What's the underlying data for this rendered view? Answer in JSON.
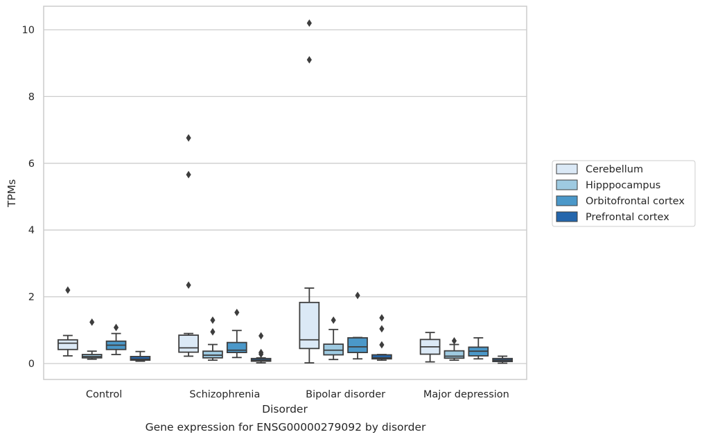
{
  "chart_data": {
    "type": "box",
    "title": "",
    "caption": "Gene expression for ENSG00000279092 by disorder",
    "xlabel": "Disorder",
    "ylabel": "TPMs",
    "ylim": [
      -0.47,
      10.7
    ],
    "yticks": [
      0,
      2,
      4,
      6,
      8,
      10
    ],
    "grid": "horizontal",
    "legend_position": "right",
    "categories": [
      "Control",
      "Schizophrenia",
      "Bipolar disorder",
      "Major depression"
    ],
    "series": [
      {
        "name": "Cerebellum",
        "color": "#dbe9f6",
        "boxes": [
          {
            "whisker_low": 0.23,
            "q1": 0.42,
            "median": 0.61,
            "q3": 0.71,
            "whisker_high": 0.84,
            "outliers": [
              2.2
            ]
          },
          {
            "whisker_low": 0.22,
            "q1": 0.34,
            "median": 0.47,
            "q3": 0.85,
            "whisker_high": 0.9,
            "outliers": [
              2.35,
              5.66,
              6.76
            ]
          },
          {
            "whisker_low": 0.02,
            "q1": 0.45,
            "median": 0.71,
            "q3": 1.83,
            "whisker_high": 2.26,
            "outliers": [
              9.1,
              10.2
            ]
          },
          {
            "whisker_low": 0.05,
            "q1": 0.28,
            "median": 0.5,
            "q3": 0.72,
            "whisker_high": 0.93,
            "outliers": []
          }
        ]
      },
      {
        "name": "Hipppocampus",
        "color": "#9ecae1",
        "boxes": [
          {
            "whisker_low": 0.13,
            "q1": 0.17,
            "median": 0.21,
            "q3": 0.27,
            "whisker_high": 0.37,
            "outliers": [
              1.24
            ]
          },
          {
            "whisker_low": 0.1,
            "q1": 0.17,
            "median": 0.25,
            "q3": 0.37,
            "whisker_high": 0.57,
            "outliers": [
              0.95,
              1.3
            ]
          },
          {
            "whisker_low": 0.12,
            "q1": 0.26,
            "median": 0.4,
            "q3": 0.58,
            "whisker_high": 1.02,
            "outliers": [
              1.3
            ]
          },
          {
            "whisker_low": 0.1,
            "q1": 0.16,
            "median": 0.22,
            "q3": 0.38,
            "whisker_high": 0.57,
            "outliers": [
              0.68
            ]
          }
        ]
      },
      {
        "name": "Orbitofrontal cortex",
        "color": "#4b98c9",
        "boxes": [
          {
            "whisker_low": 0.27,
            "q1": 0.42,
            "median": 0.55,
            "q3": 0.67,
            "whisker_high": 0.9,
            "outliers": [
              1.08
            ]
          },
          {
            "whisker_low": 0.18,
            "q1": 0.33,
            "median": 0.4,
            "q3": 0.63,
            "whisker_high": 0.99,
            "outliers": [
              1.53
            ]
          },
          {
            "whisker_low": 0.14,
            "q1": 0.33,
            "median": 0.5,
            "q3": 0.77,
            "whisker_high": 0.78,
            "outliers": [
              2.04
            ]
          },
          {
            "whisker_low": 0.14,
            "q1": 0.23,
            "median": 0.37,
            "q3": 0.49,
            "whisker_high": 0.77,
            "outliers": []
          }
        ]
      },
      {
        "name": "Prefrontal cortex",
        "color": "#2466ac",
        "boxes": [
          {
            "whisker_low": 0.07,
            "q1": 0.1,
            "median": 0.13,
            "q3": 0.21,
            "whisker_high": 0.36,
            "outliers": []
          },
          {
            "whisker_low": 0.02,
            "q1": 0.07,
            "median": 0.1,
            "q3": 0.15,
            "whisker_high": 0.17,
            "outliers": [
              0.28,
              0.33,
              0.83
            ]
          },
          {
            "whisker_low": 0.1,
            "q1": 0.14,
            "median": 0.17,
            "q3": 0.26,
            "whisker_high": 0.27,
            "outliers": [
              0.56,
              1.04,
              1.37
            ]
          },
          {
            "whisker_low": 0.01,
            "q1": 0.06,
            "median": 0.1,
            "q3": 0.15,
            "whisker_high": 0.22,
            "outliers": []
          }
        ]
      }
    ]
  }
}
